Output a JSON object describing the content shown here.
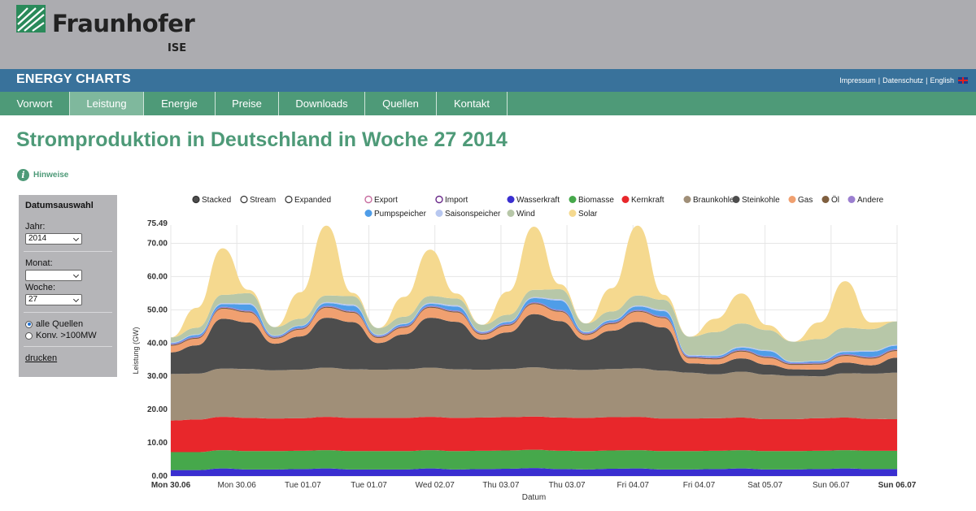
{
  "header": {
    "logo_name": "Fraunhofer",
    "logo_sub": "ISE",
    "site_title": "ENERGY CHARTS",
    "links": [
      "Impressum",
      "Datenschutz",
      "English"
    ]
  },
  "nav": {
    "items": [
      "Vorwort",
      "Leistung",
      "Energie",
      "Preise",
      "Downloads",
      "Quellen",
      "Kontakt"
    ],
    "active": "Leistung"
  },
  "page": {
    "title": "Stromproduktion in Deutschland in Woche 27 2014",
    "hint_label": "Hinweise"
  },
  "sidebar": {
    "heading": "Datumsauswahl",
    "year_label": "Jahr:",
    "year_value": "2014",
    "month_label": "Monat:",
    "month_value": "",
    "week_label": "Woche:",
    "week_value": "27",
    "radio_all": "alle Quellen",
    "radio_conv": "Konv. >100MW",
    "print_label": "drucken"
  },
  "colors": {
    "accent_green": "#4e9a78",
    "header_blue": "#39729b"
  },
  "chart_data": {
    "type": "area",
    "stacked": true,
    "view_modes": [
      "Stacked",
      "Stream",
      "Expanded"
    ],
    "selected_view": "Stacked",
    "xlabel": "Datum",
    "ylabel": "Leistung (GW)",
    "ylim": [
      0,
      75.49
    ],
    "y_ticks": [
      "0.00",
      "10.00",
      "20.00",
      "30.00",
      "40.00",
      "50.00",
      "60.00",
      "70.00"
    ],
    "y_max_label": "75.49",
    "x_tick_labels": [
      "Mon 30.06",
      "Mon 30.06",
      "Tue 01.07",
      "Tue 01.07",
      "Wed 02.07",
      "Thu 03.07",
      "Thu 03.07",
      "Fri 04.07",
      "Fri 04.07",
      "Sat 05.07",
      "Sun 06.07",
      "Sun 06.07"
    ],
    "grid": true,
    "legend_position": "top",
    "x_hours": [
      0,
      6,
      12,
      18,
      24,
      30,
      36,
      42,
      48,
      54,
      60,
      66,
      72,
      78,
      84,
      90,
      96,
      102,
      108,
      114,
      120,
      126,
      132,
      138,
      144,
      150,
      156,
      162,
      168
    ],
    "series": [
      {
        "name": "Wasserkraft",
        "color": "#3a2fd0",
        "values": [
          1.8,
          1.8,
          2.3,
          2.0,
          2.0,
          2.1,
          2.3,
          2.0,
          2.0,
          2.0,
          2.3,
          2.0,
          2.1,
          2.2,
          2.4,
          2.1,
          2.0,
          2.2,
          2.3,
          2.0,
          2.0,
          2.1,
          2.3,
          2.0,
          2.0,
          2.1,
          2.3,
          2.1,
          2.1
        ]
      },
      {
        "name": "Biomasse",
        "color": "#46a84b",
        "values": [
          5.4,
          5.4,
          5.5,
          5.5,
          5.5,
          5.5,
          5.5,
          5.5,
          5.5,
          5.5,
          5.5,
          5.5,
          5.5,
          5.5,
          5.5,
          5.5,
          5.5,
          5.5,
          5.5,
          5.5,
          5.5,
          5.5,
          5.5,
          5.5,
          5.5,
          5.5,
          5.5,
          5.5,
          5.5
        ]
      },
      {
        "name": "Kernkraft",
        "color": "#e8272b",
        "values": [
          9.5,
          9.8,
          10.0,
          10.0,
          9.8,
          9.8,
          10.0,
          10.0,
          10.0,
          10.0,
          10.0,
          10.0,
          10.0,
          10.0,
          10.0,
          10.0,
          10.0,
          10.0,
          10.0,
          9.8,
          9.8,
          9.8,
          9.8,
          9.6,
          9.6,
          9.8,
          9.8,
          9.6,
          9.5
        ]
      },
      {
        "name": "Braunkohle",
        "color": "#a08f78",
        "values": [
          14.0,
          13.8,
          14.5,
          14.7,
          14.5,
          14.6,
          14.8,
          14.6,
          14.5,
          14.6,
          14.8,
          14.6,
          14.4,
          14.5,
          14.8,
          14.5,
          14.4,
          14.5,
          14.6,
          14.4,
          13.8,
          13.2,
          13.8,
          13.4,
          13.0,
          12.6,
          13.3,
          13.6,
          14.0
        ]
      },
      {
        "name": "Steinkohle",
        "color": "#4d4d4d",
        "values": [
          6.5,
          8.5,
          15.0,
          14.0,
          8.0,
          10.0,
          15.0,
          14.2,
          8.0,
          10.5,
          15.0,
          14.3,
          9.0,
          11.0,
          16.0,
          14.5,
          9.0,
          11.5,
          14.0,
          13.0,
          2.8,
          3.0,
          4.0,
          3.0,
          2.0,
          2.0,
          3.2,
          2.5,
          4.5
        ]
      },
      {
        "name": "Gas",
        "color": "#f0a070",
        "values": [
          2.0,
          2.0,
          3.0,
          3.0,
          1.5,
          2.0,
          3.0,
          2.8,
          1.5,
          2.0,
          3.0,
          2.8,
          1.5,
          2.0,
          3.0,
          2.8,
          1.5,
          2.0,
          3.0,
          2.8,
          1.5,
          1.5,
          2.0,
          2.0,
          1.3,
          1.5,
          2.0,
          2.0,
          2.0
        ]
      },
      {
        "name": "Öl",
        "color": "#7f5f3f",
        "values": [
          0.3,
          0.3,
          0.3,
          0.3,
          0.3,
          0.3,
          0.3,
          0.3,
          0.3,
          0.3,
          0.3,
          0.3,
          0.3,
          0.3,
          0.3,
          0.3,
          0.3,
          0.3,
          0.3,
          0.3,
          0.3,
          0.3,
          0.3,
          0.3,
          0.3,
          0.3,
          0.3,
          0.3,
          0.3
        ]
      },
      {
        "name": "Andere",
        "color": "#9b7fd0",
        "values": [
          0.3,
          0.3,
          0.3,
          0.3,
          0.3,
          0.3,
          0.3,
          0.3,
          0.3,
          0.3,
          0.3,
          0.3,
          0.3,
          0.3,
          0.3,
          0.3,
          0.3,
          0.3,
          0.3,
          0.3,
          0.3,
          0.3,
          0.3,
          0.3,
          0.3,
          0.3,
          0.3,
          0.3,
          0.3
        ]
      },
      {
        "name": "Pumpspeicher",
        "color": "#4f9de8",
        "values": [
          0.2,
          0.5,
          0.8,
          1.8,
          0.2,
          0.5,
          0.8,
          1.5,
          0.2,
          0.5,
          0.6,
          1.2,
          0.2,
          0.5,
          1.2,
          2.8,
          0.2,
          0.5,
          1.0,
          1.5,
          0.2,
          0.4,
          0.6,
          1.5,
          0.2,
          0.4,
          0.6,
          1.5,
          1.0
        ]
      },
      {
        "name": "Saisonspeicher",
        "color": "#b8c8f0",
        "values": [
          0.2,
          0.2,
          0.3,
          0.4,
          0.2,
          0.2,
          0.3,
          0.4,
          0.2,
          0.2,
          0.3,
          0.4,
          0.2,
          0.2,
          0.3,
          0.4,
          0.2,
          0.2,
          0.3,
          0.4,
          0.2,
          0.2,
          0.3,
          0.3,
          0.2,
          0.2,
          0.3,
          0.3,
          0.3
        ]
      },
      {
        "name": "Wind",
        "color": "#b7c7a8",
        "values": [
          1.5,
          2.0,
          2.5,
          3.0,
          2.5,
          2.0,
          2.0,
          2.5,
          2.0,
          2.0,
          2.0,
          2.0,
          2.0,
          2.0,
          2.2,
          3.0,
          2.5,
          2.5,
          3.0,
          3.0,
          5.5,
          7.0,
          7.0,
          6.0,
          6.0,
          6.5,
          7.0,
          6.5,
          7.0
        ]
      },
      {
        "name": "Solar",
        "color": "#f5d98f",
        "values": [
          0,
          6.0,
          14.0,
          1.0,
          0,
          8.0,
          21.0,
          1.0,
          0,
          6.0,
          14.0,
          1.5,
          0,
          7.0,
          19.0,
          1.5,
          0,
          7.0,
          21.0,
          1.5,
          0,
          4.0,
          9.0,
          1.5,
          0,
          5.0,
          14.0,
          2.0,
          0
        ]
      }
    ],
    "legend_inactive": [
      {
        "name": "Export",
        "color": "#c86ea0"
      },
      {
        "name": "Import",
        "color": "#6a2a8a"
      }
    ]
  }
}
